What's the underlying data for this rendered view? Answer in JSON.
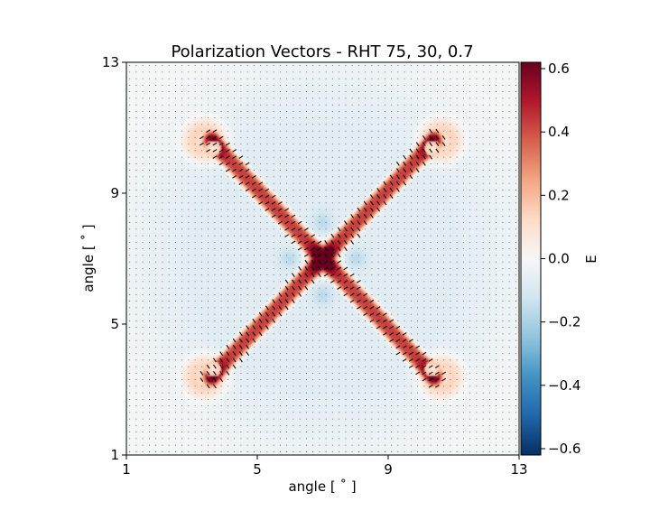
{
  "chart_data": {
    "type": "heatmap",
    "title": "Polarization Vectors - RHT 75, 30, 0.7",
    "xlabel": "angle [ ˚ ]",
    "ylabel": "angle [ ˚ ]",
    "xlim": [
      1,
      13
    ],
    "ylim": [
      1,
      13
    ],
    "xticks": [
      1,
      5,
      9,
      13
    ],
    "yticks": [
      1,
      5,
      9,
      13
    ],
    "xtick_labels": [
      "1",
      "5",
      "9",
      "13"
    ],
    "ytick_labels": [
      "1",
      "5",
      "9",
      "13"
    ],
    "colormap": "RdBu_r",
    "colorbar": {
      "label": "E",
      "range": [
        -0.62,
        0.62
      ],
      "ticks": [
        -0.6,
        -0.4,
        -0.2,
        0.0,
        0.2,
        0.4,
        0.6
      ],
      "tick_labels": [
        "−0.6",
        "−0.4",
        "−0.2",
        "0.0",
        "0.2",
        "0.4",
        "0.6"
      ]
    },
    "structures": [
      {
        "kind": "filament",
        "from": [
          3.6,
          3.4
        ],
        "to": [
          10.4,
          10.6
        ],
        "peak_E": 0.45
      },
      {
        "kind": "filament",
        "from": [
          3.6,
          10.6
        ],
        "to": [
          10.4,
          3.4
        ],
        "peak_E": 0.45
      },
      {
        "kind": "core",
        "center": [
          7.0,
          7.0
        ],
        "peak_E": 0.62
      },
      {
        "kind": "halo",
        "center": [
          3.4,
          3.4
        ],
        "peak_E": 0.18
      },
      {
        "kind": "halo",
        "center": [
          10.6,
          3.4
        ],
        "peak_E": 0.18
      },
      {
        "kind": "halo",
        "center": [
          3.4,
          10.6
        ],
        "peak_E": 0.18
      },
      {
        "kind": "halo",
        "center": [
          10.6,
          10.6
        ],
        "peak_E": 0.18
      }
    ],
    "background_E": -0.07,
    "vector_field": {
      "spacing": 0.2,
      "style": "headless segments"
    }
  }
}
